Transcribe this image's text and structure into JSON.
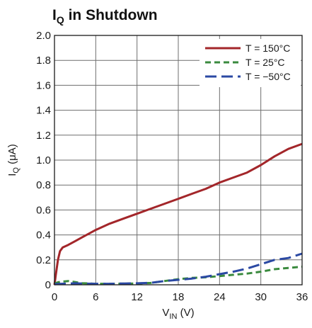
{
  "chart_data": {
    "type": "line",
    "title": {
      "main": "I",
      "sub": "Q",
      "rest": " in Shutdown"
    },
    "xlabel": {
      "main": "V",
      "sub": "IN",
      "rest": " (V)"
    },
    "ylabel": {
      "main": "I",
      "sub": "Q",
      "rest": " (μA)"
    },
    "xlim": [
      0,
      36
    ],
    "ylim": [
      0,
      2.0
    ],
    "xticks": [
      0,
      6,
      12,
      18,
      24,
      30,
      36
    ],
    "yticks": [
      0,
      0.2,
      0.4,
      0.6,
      0.8,
      1.0,
      1.2,
      1.4,
      1.6,
      1.8,
      2.0
    ],
    "ytick_labels": [
      "0",
      "0.2",
      "0.4",
      "0.6",
      "0.8",
      "1.0",
      "1.2",
      "1.4",
      "1.6",
      "1.8",
      "2.0"
    ],
    "grid": true,
    "legend_position": "top-right",
    "series": [
      {
        "name": "T = 150°C",
        "color": "#a3262a",
        "dash": "solid",
        "x": [
          0,
          0.2,
          0.5,
          0.8,
          1.2,
          2,
          3,
          4,
          6,
          8,
          10,
          12,
          14,
          16,
          18,
          20,
          22,
          24,
          26,
          28,
          30,
          32,
          34,
          36
        ],
        "y": [
          0.0,
          0.08,
          0.2,
          0.27,
          0.3,
          0.32,
          0.35,
          0.38,
          0.44,
          0.49,
          0.53,
          0.57,
          0.61,
          0.65,
          0.69,
          0.73,
          0.77,
          0.82,
          0.86,
          0.9,
          0.96,
          1.03,
          1.09,
          1.13
        ]
      },
      {
        "name": "T = 25°C",
        "color": "#3a8a3e",
        "dash": "short",
        "x": [
          0,
          0.5,
          1,
          2,
          3,
          4,
          6,
          8,
          10,
          12,
          14,
          16,
          18,
          20,
          22,
          24,
          26,
          28,
          30,
          32,
          34,
          36
        ],
        "y": [
          0.01,
          0.02,
          0.025,
          0.03,
          0.022,
          0.013,
          0.008,
          0.008,
          0.009,
          0.01,
          0.015,
          0.03,
          0.045,
          0.055,
          0.06,
          0.07,
          0.08,
          0.09,
          0.105,
          0.125,
          0.135,
          0.145
        ]
      },
      {
        "name": "T = −50°C",
        "color": "#2b49a3",
        "dash": "long",
        "x": [
          0,
          1,
          2,
          3,
          4,
          6,
          8,
          10,
          12,
          14,
          16,
          18,
          20,
          22,
          24,
          26,
          28,
          30,
          32,
          34,
          36
        ],
        "y": [
          0.005,
          0.008,
          0.01,
          0.012,
          0.01,
          0.008,
          0.008,
          0.01,
          0.012,
          0.016,
          0.03,
          0.04,
          0.05,
          0.065,
          0.085,
          0.105,
          0.13,
          0.165,
          0.2,
          0.215,
          0.25
        ]
      }
    ]
  }
}
